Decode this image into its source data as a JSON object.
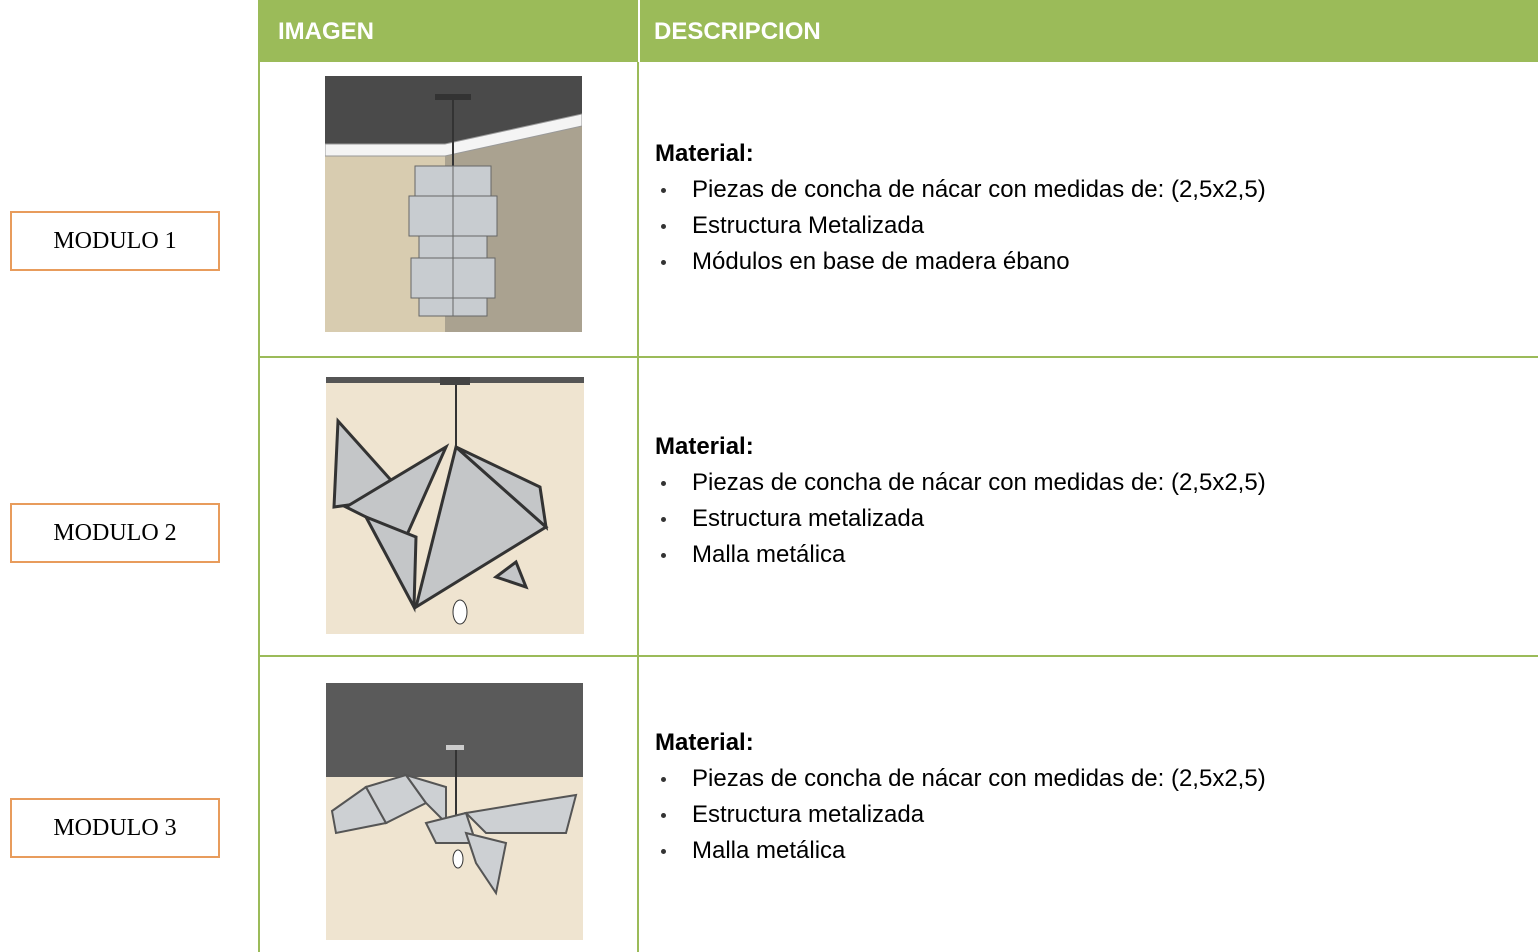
{
  "header": {
    "columns": [
      "IMAGEN",
      "DESCRIPCION"
    ]
  },
  "table": {
    "rows": [
      {
        "label": "MODULO 1",
        "heading": "Material:",
        "items": [
          "Piezas de concha de nácar con medidas de: (2,5x2,5)",
          "Estructura Metalizada",
          "Módulos en base de madera ébano"
        ]
      },
      {
        "label": "MODULO 2",
        "heading": "Material:",
        "items": [
          "Piezas de concha de nácar con medidas de: (2,5x2,5)",
          "Estructura metalizada",
          "Malla metálica"
        ]
      },
      {
        "label": "MODULO 3",
        "heading": "Material:",
        "items": [
          "Piezas de concha de nácar con medidas de: (2,5x2,5)",
          "Estructura metalizada",
          "Malla metálica"
        ]
      }
    ]
  }
}
